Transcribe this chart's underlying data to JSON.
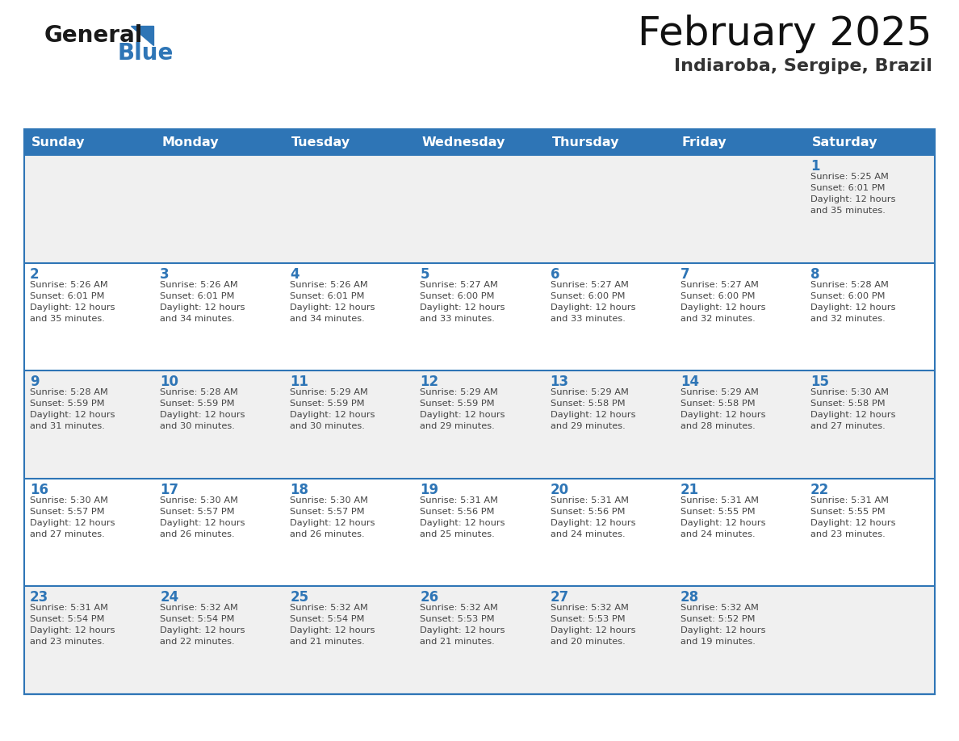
{
  "title": "February 2025",
  "subtitle": "Indiaroba, Sergipe, Brazil",
  "header_color": "#2E75B6",
  "header_text_color": "#FFFFFF",
  "day_names": [
    "Sunday",
    "Monday",
    "Tuesday",
    "Wednesday",
    "Thursday",
    "Friday",
    "Saturday"
  ],
  "background_color": "#FFFFFF",
  "cell_bg_white": "#FFFFFF",
  "cell_bg_light": "#F0F0F0",
  "separator_color": "#2E75B6",
  "day_number_color": "#2E75B6",
  "text_color": "#444444",
  "logo_general_color": "#1A1A1A",
  "logo_blue_color": "#2E75B6",
  "weeks": [
    [
      {
        "day": null,
        "sunrise": null,
        "sunset": null,
        "daylight": null
      },
      {
        "day": null,
        "sunrise": null,
        "sunset": null,
        "daylight": null
      },
      {
        "day": null,
        "sunrise": null,
        "sunset": null,
        "daylight": null
      },
      {
        "day": null,
        "sunrise": null,
        "sunset": null,
        "daylight": null
      },
      {
        "day": null,
        "sunrise": null,
        "sunset": null,
        "daylight": null
      },
      {
        "day": null,
        "sunrise": null,
        "sunset": null,
        "daylight": null
      },
      {
        "day": 1,
        "sunrise": "5:25 AM",
        "sunset": "6:01 PM",
        "daylight": "12 hours and 35 minutes."
      }
    ],
    [
      {
        "day": 2,
        "sunrise": "5:26 AM",
        "sunset": "6:01 PM",
        "daylight": "12 hours and 35 minutes."
      },
      {
        "day": 3,
        "sunrise": "5:26 AM",
        "sunset": "6:01 PM",
        "daylight": "12 hours and 34 minutes."
      },
      {
        "day": 4,
        "sunrise": "5:26 AM",
        "sunset": "6:01 PM",
        "daylight": "12 hours and 34 minutes."
      },
      {
        "day": 5,
        "sunrise": "5:27 AM",
        "sunset": "6:00 PM",
        "daylight": "12 hours and 33 minutes."
      },
      {
        "day": 6,
        "sunrise": "5:27 AM",
        "sunset": "6:00 PM",
        "daylight": "12 hours and 33 minutes."
      },
      {
        "day": 7,
        "sunrise": "5:27 AM",
        "sunset": "6:00 PM",
        "daylight": "12 hours and 32 minutes."
      },
      {
        "day": 8,
        "sunrise": "5:28 AM",
        "sunset": "6:00 PM",
        "daylight": "12 hours and 32 minutes."
      }
    ],
    [
      {
        "day": 9,
        "sunrise": "5:28 AM",
        "sunset": "5:59 PM",
        "daylight": "12 hours and 31 minutes."
      },
      {
        "day": 10,
        "sunrise": "5:28 AM",
        "sunset": "5:59 PM",
        "daylight": "12 hours and 30 minutes."
      },
      {
        "day": 11,
        "sunrise": "5:29 AM",
        "sunset": "5:59 PM",
        "daylight": "12 hours and 30 minutes."
      },
      {
        "day": 12,
        "sunrise": "5:29 AM",
        "sunset": "5:59 PM",
        "daylight": "12 hours and 29 minutes."
      },
      {
        "day": 13,
        "sunrise": "5:29 AM",
        "sunset": "5:58 PM",
        "daylight": "12 hours and 29 minutes."
      },
      {
        "day": 14,
        "sunrise": "5:29 AM",
        "sunset": "5:58 PM",
        "daylight": "12 hours and 28 minutes."
      },
      {
        "day": 15,
        "sunrise": "5:30 AM",
        "sunset": "5:58 PM",
        "daylight": "12 hours and 27 minutes."
      }
    ],
    [
      {
        "day": 16,
        "sunrise": "5:30 AM",
        "sunset": "5:57 PM",
        "daylight": "12 hours and 27 minutes."
      },
      {
        "day": 17,
        "sunrise": "5:30 AM",
        "sunset": "5:57 PM",
        "daylight": "12 hours and 26 minutes."
      },
      {
        "day": 18,
        "sunrise": "5:30 AM",
        "sunset": "5:57 PM",
        "daylight": "12 hours and 26 minutes."
      },
      {
        "day": 19,
        "sunrise": "5:31 AM",
        "sunset": "5:56 PM",
        "daylight": "12 hours and 25 minutes."
      },
      {
        "day": 20,
        "sunrise": "5:31 AM",
        "sunset": "5:56 PM",
        "daylight": "12 hours and 24 minutes."
      },
      {
        "day": 21,
        "sunrise": "5:31 AM",
        "sunset": "5:55 PM",
        "daylight": "12 hours and 24 minutes."
      },
      {
        "day": 22,
        "sunrise": "5:31 AM",
        "sunset": "5:55 PM",
        "daylight": "12 hours and 23 minutes."
      }
    ],
    [
      {
        "day": 23,
        "sunrise": "5:31 AM",
        "sunset": "5:54 PM",
        "daylight": "12 hours and 23 minutes."
      },
      {
        "day": 24,
        "sunrise": "5:32 AM",
        "sunset": "5:54 PM",
        "daylight": "12 hours and 22 minutes."
      },
      {
        "day": 25,
        "sunrise": "5:32 AM",
        "sunset": "5:54 PM",
        "daylight": "12 hours and 21 minutes."
      },
      {
        "day": 26,
        "sunrise": "5:32 AM",
        "sunset": "5:53 PM",
        "daylight": "12 hours and 21 minutes."
      },
      {
        "day": 27,
        "sunrise": "5:32 AM",
        "sunset": "5:53 PM",
        "daylight": "12 hours and 20 minutes."
      },
      {
        "day": 28,
        "sunrise": "5:32 AM",
        "sunset": "5:52 PM",
        "daylight": "12 hours and 19 minutes."
      },
      {
        "day": null,
        "sunrise": null,
        "sunset": null,
        "daylight": null
      }
    ]
  ]
}
